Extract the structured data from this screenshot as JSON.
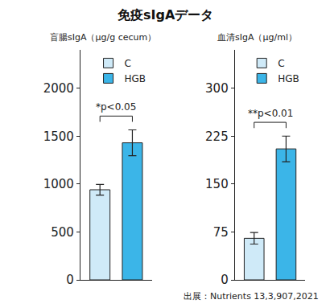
{
  "title": "免疫sIgAデータ",
  "source": "出展：Nutrients 13,3,907,2021",
  "chart_data": [
    {
      "type": "bar",
      "y_label": "盲腸sIgA（μg/g cecum）",
      "categories": [
        "C",
        "HGB"
      ],
      "values": [
        940,
        1430
      ],
      "errors": [
        55,
        135
      ],
      "colors": [
        "#cfeaf8",
        "#3bb5e8"
      ],
      "ylim": [
        0,
        2400
      ],
      "yticks": [
        0,
        500,
        1000,
        1500,
        2000
      ],
      "grid": false,
      "legend": "upper right",
      "tick_labels": "y",
      "annotations": [
        "*p<0.05"
      ]
    },
    {
      "type": "bar",
      "y_label": "血清sIgA（μg/ml）",
      "categories": [
        "C",
        "HGB"
      ],
      "values": [
        65,
        205
      ],
      "errors": [
        9,
        20
      ],
      "colors": [
        "#cfeaf8",
        "#3bb5e8"
      ],
      "ylim": [
        0,
        360
      ],
      "yticks": [
        0,
        75,
        150,
        225,
        300
      ],
      "grid": false,
      "legend": "upper right",
      "tick_labels": "y",
      "annotations": [
        "**p<0.01"
      ]
    }
  ]
}
